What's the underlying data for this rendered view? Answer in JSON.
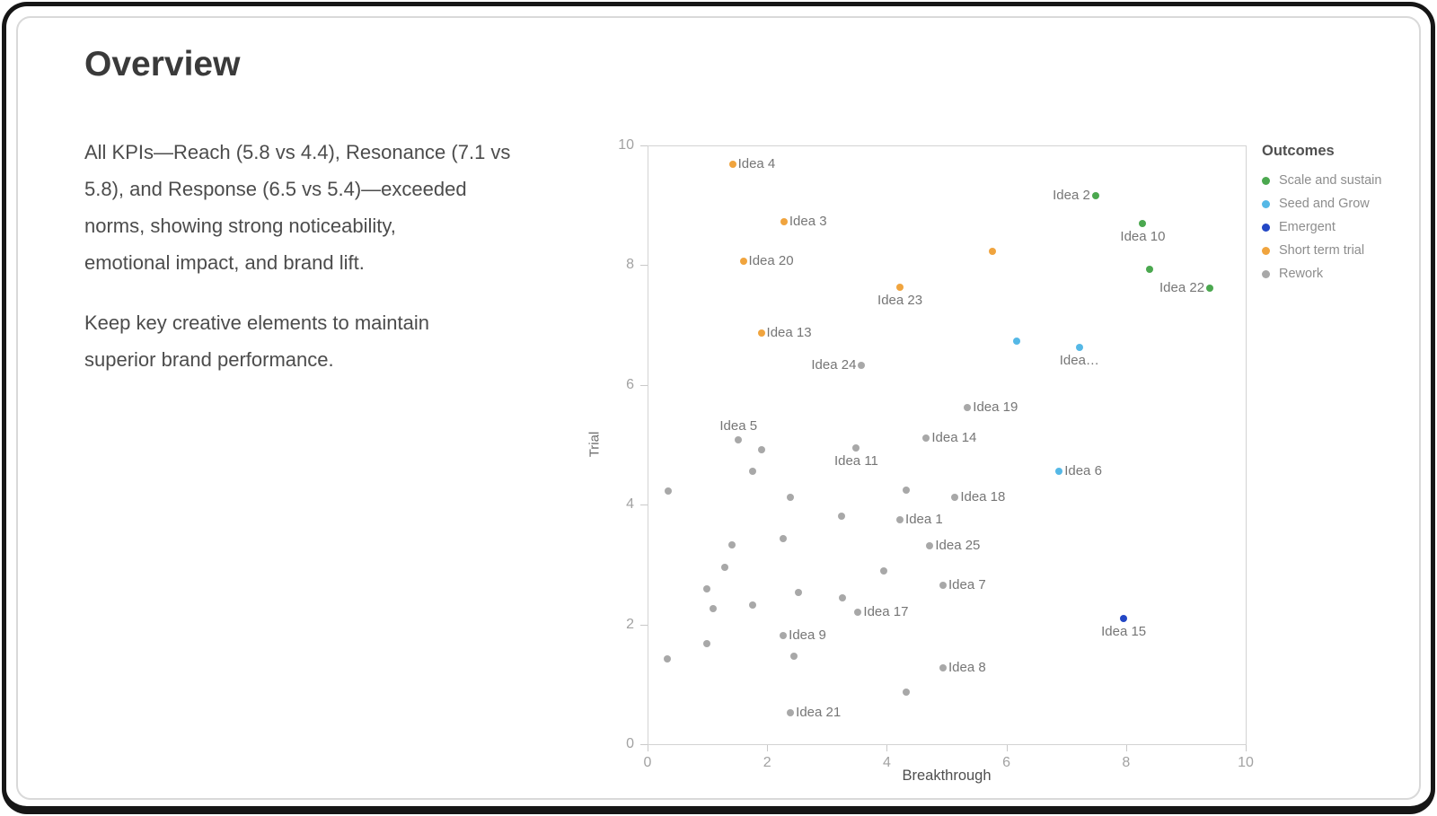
{
  "page": {
    "title": "Overview",
    "paragraphs": [
      [
        "All KPIs—Reach (5.8 vs 4.4), Resonance (7.1 vs",
        "5.8), and Response (6.5 vs 5.4)—exceeded",
        "norms, showing strong noticeability,",
        "emotional impact, and brand lift."
      ],
      [
        "Keep key creative elements to maintain",
        "superior brand performance."
      ]
    ]
  },
  "chart_data": {
    "type": "scatter",
    "xlabel": "Breakthrough",
    "ylabel": "Trial",
    "xlim": [
      0,
      10
    ],
    "ylim": [
      0,
      10
    ],
    "xticks": [
      0,
      2,
      4,
      6,
      8,
      10
    ],
    "yticks": [
      0,
      2,
      4,
      6,
      8,
      10
    ],
    "grid": false,
    "legend": {
      "title": "Outcomes",
      "position": "right"
    },
    "series": [
      {
        "name": "Scale and sustain",
        "color": "#4ba84f",
        "points": [
          {
            "x": 7.49,
            "y": 9.16,
            "label": "Idea 2",
            "label_pos": "left"
          },
          {
            "x": 8.28,
            "y": 8.7,
            "label": "Idea 10",
            "label_pos": "below"
          },
          {
            "x": 8.4,
            "y": 7.93
          },
          {
            "x": 9.4,
            "y": 7.62,
            "label": "Idea 22",
            "label_pos": "left"
          }
        ]
      },
      {
        "name": "Seed and Grow",
        "color": "#55b8e6",
        "points": [
          {
            "x": 6.17,
            "y": 6.73
          },
          {
            "x": 7.22,
            "y": 6.62,
            "label": "Idea…",
            "label_pos": "below"
          },
          {
            "x": 6.88,
            "y": 4.56,
            "label": "Idea 6",
            "label_pos": "right"
          }
        ]
      },
      {
        "name": "Emergent",
        "color": "#2347c5",
        "points": [
          {
            "x": 7.96,
            "y": 2.1,
            "label": "Idea 15",
            "label_pos": "below"
          }
        ]
      },
      {
        "name": "Short term trial",
        "color": "#f0a43e",
        "points": [
          {
            "x": 1.42,
            "y": 9.68,
            "label": "Idea 4",
            "label_pos": "right"
          },
          {
            "x": 2.28,
            "y": 8.73,
            "label": "Idea 3",
            "label_pos": "right"
          },
          {
            "x": 1.6,
            "y": 8.07,
            "label": "Idea 20",
            "label_pos": "right"
          },
          {
            "x": 5.76,
            "y": 8.23
          },
          {
            "x": 4.22,
            "y": 7.63,
            "label": "Idea 23",
            "label_pos": "below"
          },
          {
            "x": 1.9,
            "y": 6.86,
            "label": "Idea 13",
            "label_pos": "right"
          }
        ]
      },
      {
        "name": "Rework",
        "color": "#a8a8a8",
        "points": [
          {
            "x": 3.58,
            "y": 6.32,
            "label": "Idea 24",
            "label_pos": "left"
          },
          {
            "x": 5.35,
            "y": 5.62,
            "label": "Idea 19",
            "label_pos": "right"
          },
          {
            "x": 1.52,
            "y": 5.08,
            "label": "Idea 5",
            "label_pos": "above"
          },
          {
            "x": 1.91,
            "y": 4.92
          },
          {
            "x": 3.49,
            "y": 4.95,
            "label": "Idea 11",
            "label_pos": "below"
          },
          {
            "x": 4.66,
            "y": 5.11,
            "label": "Idea 14",
            "label_pos": "right"
          },
          {
            "x": 1.75,
            "y": 4.56
          },
          {
            "x": 0.34,
            "y": 4.23
          },
          {
            "x": 4.33,
            "y": 4.24
          },
          {
            "x": 2.39,
            "y": 4.13
          },
          {
            "x": 5.14,
            "y": 4.13,
            "label": "Idea 18",
            "label_pos": "right"
          },
          {
            "x": 3.24,
            "y": 3.81
          },
          {
            "x": 4.22,
            "y": 3.75,
            "label": "Idea 1",
            "label_pos": "right"
          },
          {
            "x": 2.27,
            "y": 3.44
          },
          {
            "x": 1.41,
            "y": 3.33
          },
          {
            "x": 4.72,
            "y": 3.32,
            "label": "Idea 25",
            "label_pos": "right"
          },
          {
            "x": 1.29,
            "y": 2.96
          },
          {
            "x": 3.95,
            "y": 2.9
          },
          {
            "x": 4.94,
            "y": 2.66,
            "label": "Idea 7",
            "label_pos": "right"
          },
          {
            "x": 0.99,
            "y": 2.6
          },
          {
            "x": 2.52,
            "y": 2.54
          },
          {
            "x": 3.26,
            "y": 2.44
          },
          {
            "x": 1.76,
            "y": 2.32
          },
          {
            "x": 1.1,
            "y": 2.26
          },
          {
            "x": 3.52,
            "y": 2.2,
            "label": "Idea 17",
            "label_pos": "right"
          },
          {
            "x": 2.27,
            "y": 1.81,
            "label": "Idea 9",
            "label_pos": "right"
          },
          {
            "x": 0.99,
            "y": 1.68
          },
          {
            "x": 2.44,
            "y": 1.47
          },
          {
            "x": 0.33,
            "y": 1.43
          },
          {
            "x": 4.94,
            "y": 1.27,
            "label": "Idea 8",
            "label_pos": "right"
          },
          {
            "x": 4.33,
            "y": 0.87
          },
          {
            "x": 2.39,
            "y": 0.52,
            "label": "Idea 21",
            "label_pos": "right"
          }
        ]
      }
    ]
  }
}
